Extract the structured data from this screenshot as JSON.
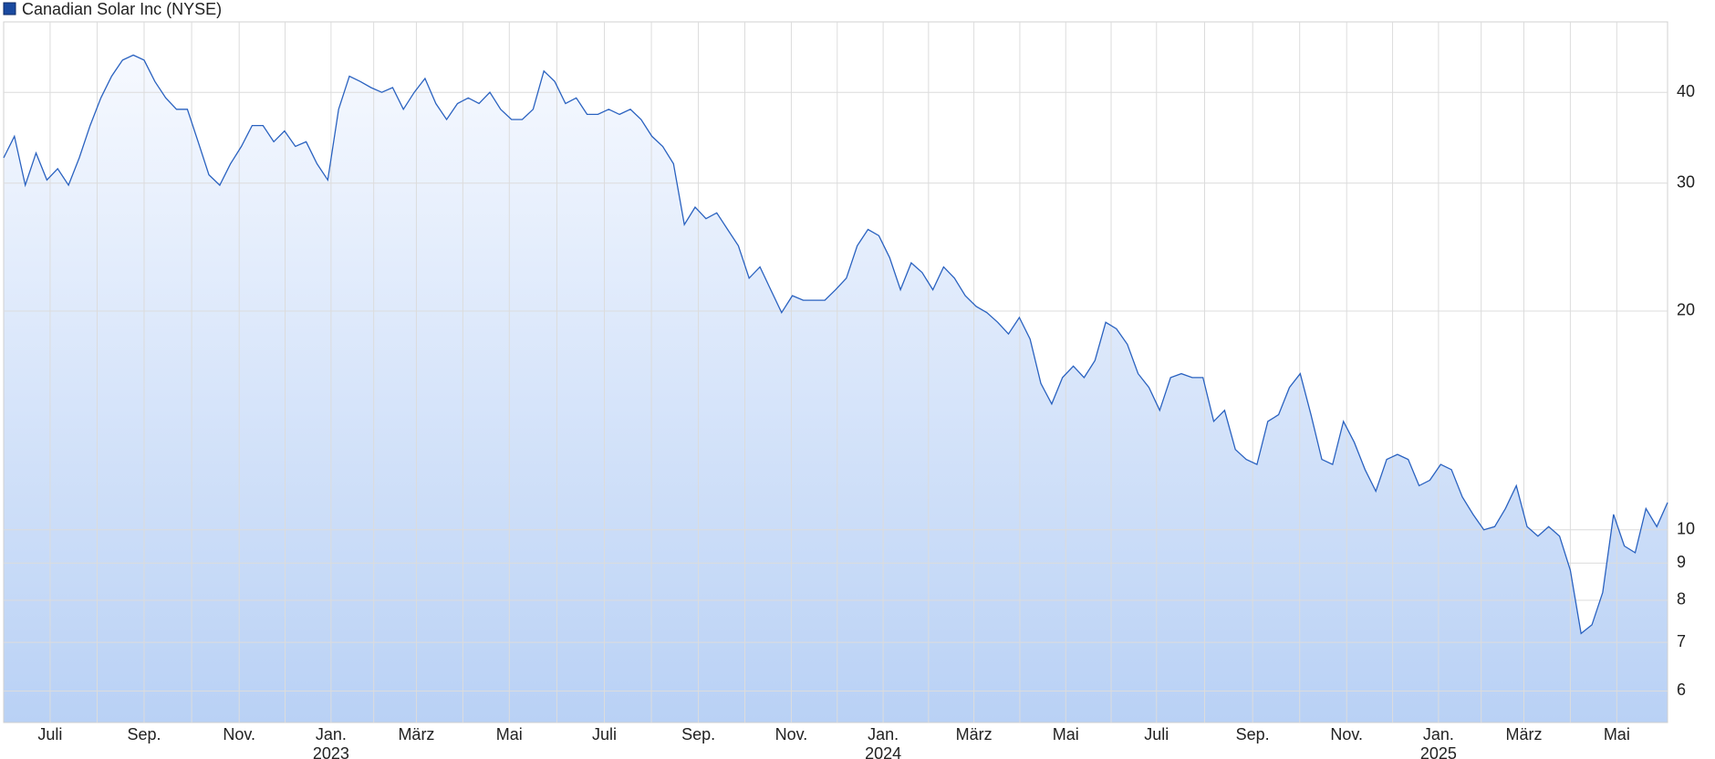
{
  "chart_data": {
    "type": "line",
    "area": true,
    "yscale": "log",
    "grid": true,
    "legend": "top-left",
    "series": [
      {
        "name": "Canadian Solar Inc (NYSE)",
        "color": "#2a62c0",
        "values": [
          32.5,
          34.8,
          29.8,
          33,
          30.3,
          31.4,
          29.8,
          32.5,
          36.0,
          39.3,
          42.1,
          44.3,
          45,
          44.3,
          41.4,
          39.3,
          37.9,
          37.9,
          34.2,
          30.8,
          29.8,
          31.9,
          33.7,
          36,
          36,
          34.2,
          35.4,
          33.7,
          34.2,
          31.9,
          30.3,
          37.9,
          42.1,
          41.4,
          40.6,
          40,
          40.6,
          37.9,
          40,
          41.8,
          38.6,
          36.7,
          38.6,
          39.3,
          38.6,
          40,
          37.9,
          36.7,
          36.7,
          37.9,
          42.8,
          41.4,
          38.6,
          39.3,
          37.3,
          37.3,
          37.9,
          37.3,
          37.9,
          36.7,
          34.8,
          33.7,
          31.9,
          26.3,
          27.8,
          26.8,
          27.3,
          25.9,
          24.6,
          22.2,
          23.0,
          21.4,
          19.9,
          21.0,
          20.7,
          20.7,
          20.7,
          21.4,
          22.2,
          24.6,
          25.9,
          25.4,
          23.7,
          21.4,
          23.3,
          22.6,
          21.4,
          23.0,
          22.2,
          21.0,
          20.3,
          19.9,
          19.3,
          18.6,
          19.6,
          18.3,
          15.9,
          14.9,
          16.2,
          16.8,
          16.2,
          17.1,
          19.3,
          18.9,
          18.0,
          16.4,
          15.7,
          14.6,
          16.2,
          16.4,
          16.2,
          16.2,
          14.1,
          14.6,
          12.9,
          12.5,
          12.3,
          14.1,
          14.4,
          15.7,
          16.4,
          14.4,
          12.5,
          12.3,
          14.1,
          13.2,
          12.1,
          11.3,
          12.5,
          12.7,
          12.5,
          11.5,
          11.7,
          12.3,
          12.1,
          11.1,
          10.5,
          10.0,
          10.1,
          10.7,
          11.5,
          10.1,
          9.8,
          10.1,
          9.8,
          8.8,
          7.2,
          7.4,
          8.2,
          10.5,
          9.5,
          9.3,
          10.7,
          10.1,
          10.9
        ]
      }
    ],
    "xlim": [
      0,
      154
    ],
    "ylim": [
      5.43,
      50
    ],
    "yticks": [
      6,
      7,
      8,
      9,
      10,
      20,
      30,
      40
    ],
    "xticks": [
      {
        "value": 4.3,
        "label": "Juli"
      },
      {
        "value": 13.0,
        "label": "Sep."
      },
      {
        "value": 21.8,
        "label": "Nov."
      },
      {
        "value": 30.3,
        "label": "Jan."
      },
      {
        "value": 38.2,
        "label": "März"
      },
      {
        "value": 46.8,
        "label": "Mai"
      },
      {
        "value": 55.6,
        "label": "Juli"
      },
      {
        "value": 64.3,
        "label": "Sep."
      },
      {
        "value": 72.9,
        "label": "Nov."
      },
      {
        "value": 81.4,
        "label": "Jan."
      },
      {
        "value": 89.8,
        "label": "März"
      },
      {
        "value": 98.3,
        "label": "Mai"
      },
      {
        "value": 106.7,
        "label": "Juli"
      },
      {
        "value": 115.6,
        "label": "Sep."
      },
      {
        "value": 124.3,
        "label": "Nov."
      },
      {
        "value": 132.8,
        "label": "Jan."
      },
      {
        "value": 140.7,
        "label": "März"
      },
      {
        "value": 149.3,
        "label": "Mai"
      }
    ],
    "year_labels": [
      {
        "value": 30.3,
        "label": "2023"
      },
      {
        "value": 81.4,
        "label": "2024"
      },
      {
        "value": 132.8,
        "label": "2025"
      }
    ]
  }
}
